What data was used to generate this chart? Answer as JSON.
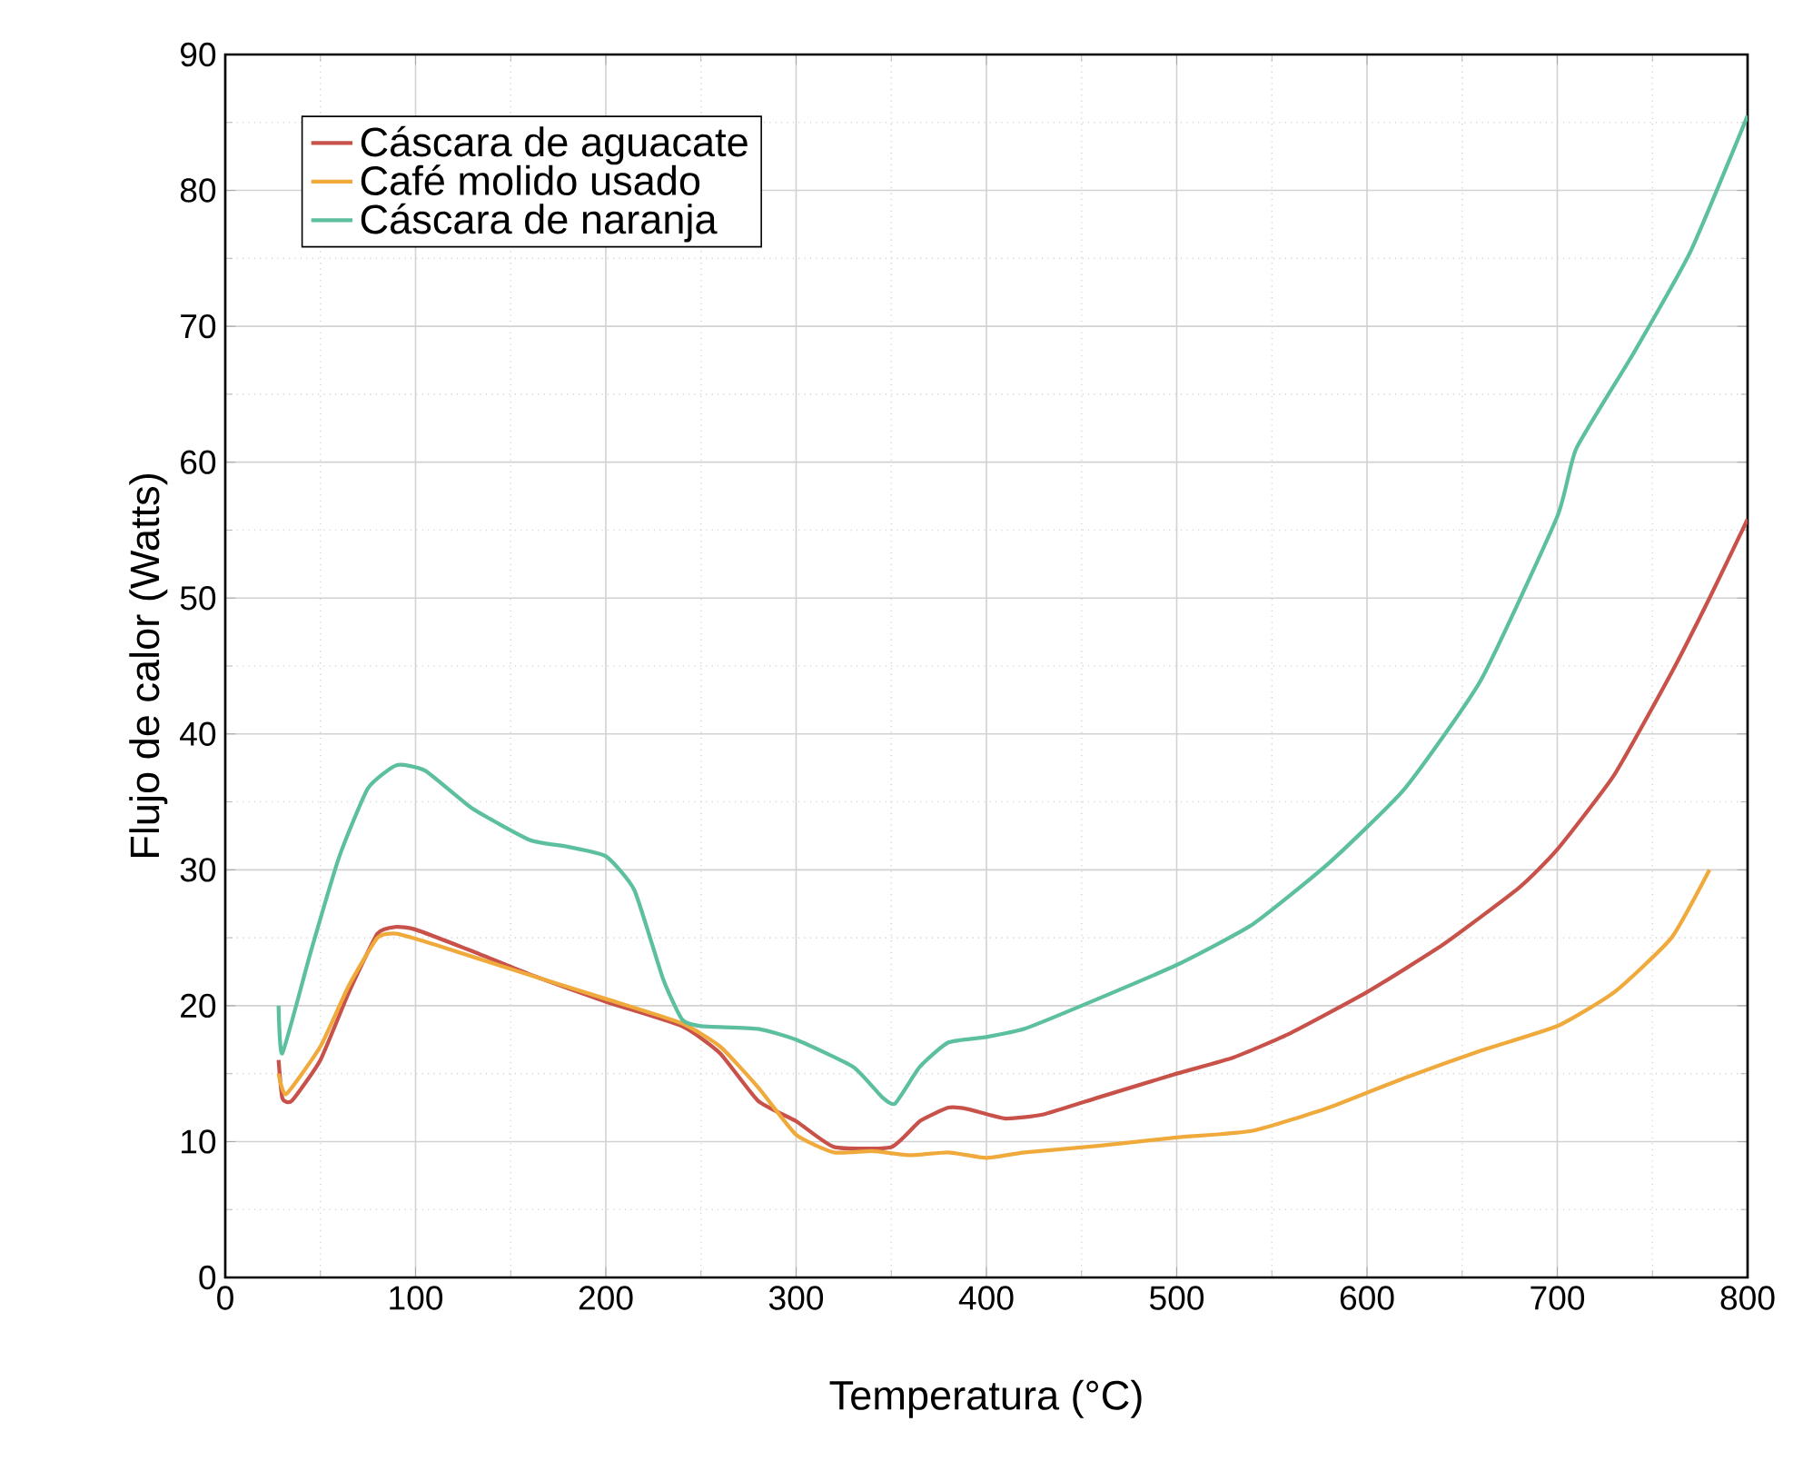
{
  "chart_data": {
    "type": "line",
    "xlabel": "Temperatura (°C)",
    "ylabel": "Flujo de calor (Watts)",
    "xlim": [
      0,
      800
    ],
    "ylim": [
      0,
      90
    ],
    "xticks": [
      0,
      100,
      200,
      300,
      400,
      500,
      600,
      700,
      800
    ],
    "yticks": [
      0,
      10,
      20,
      30,
      40,
      50,
      60,
      70,
      80,
      90
    ],
    "grid": true,
    "legend": "top left",
    "marker": "none",
    "line_style": "solid",
    "series": [
      {
        "name": "Cáscara de aguacate",
        "color": "#c8524a",
        "x": [
          28,
          30,
          35,
          50,
          65,
          80,
          90,
          100,
          130,
          160,
          200,
          240,
          260,
          280,
          300,
          320,
          350,
          365,
          380,
          390,
          410,
          430,
          460,
          500,
          530,
          560,
          600,
          640,
          680,
          700,
          730,
          760,
          780,
          800
        ],
        "values": [
          16,
          13.2,
          13,
          16,
          21,
          25.3,
          25.8,
          25.6,
          24,
          22.3,
          20.3,
          18.5,
          16.5,
          13,
          11.5,
          9.6,
          9.6,
          11.5,
          12.5,
          12.4,
          11.7,
          12,
          13.3,
          15,
          16.2,
          18,
          21,
          24.5,
          28.7,
          31.5,
          37,
          44.5,
          50,
          55.8
        ]
      },
      {
        "name": "Café molido usado",
        "color": "#f0aa3c",
        "x": [
          28,
          32,
          50,
          65,
          80,
          90,
          110,
          150,
          200,
          240,
          260,
          280,
          300,
          320,
          340,
          360,
          380,
          400,
          420,
          460,
          500,
          540,
          580,
          620,
          660,
          700,
          730,
          760,
          780
        ],
        "values": [
          15,
          13.5,
          17,
          21.5,
          25,
          25.3,
          24.5,
          22.7,
          20.5,
          18.7,
          17,
          14,
          10.5,
          9.2,
          9.3,
          9,
          9.2,
          8.8,
          9.2,
          9.7,
          10.3,
          10.8,
          12.5,
          14.7,
          16.7,
          18.5,
          21,
          25,
          30
        ]
      },
      {
        "name": "Cáscara de naranja",
        "color": "#5cbfa0",
        "x": [
          28,
          30,
          45,
          60,
          75,
          90,
          105,
          130,
          160,
          180,
          200,
          215,
          230,
          240,
          250,
          280,
          300,
          330,
          345,
          352,
          365,
          380,
          400,
          420,
          450,
          500,
          540,
          580,
          620,
          660,
          700,
          710,
          740,
          770,
          800
        ],
        "values": [
          20,
          16.5,
          24,
          31,
          36,
          37.7,
          37.3,
          34.5,
          32.2,
          31.7,
          31,
          28.5,
          22,
          19,
          18.5,
          18.3,
          17.5,
          15.5,
          13.3,
          12.8,
          15.5,
          17.3,
          17.7,
          18.3,
          20,
          23,
          26,
          30.5,
          36,
          44,
          56,
          61,
          68,
          75.5,
          85.5
        ]
      }
    ]
  }
}
